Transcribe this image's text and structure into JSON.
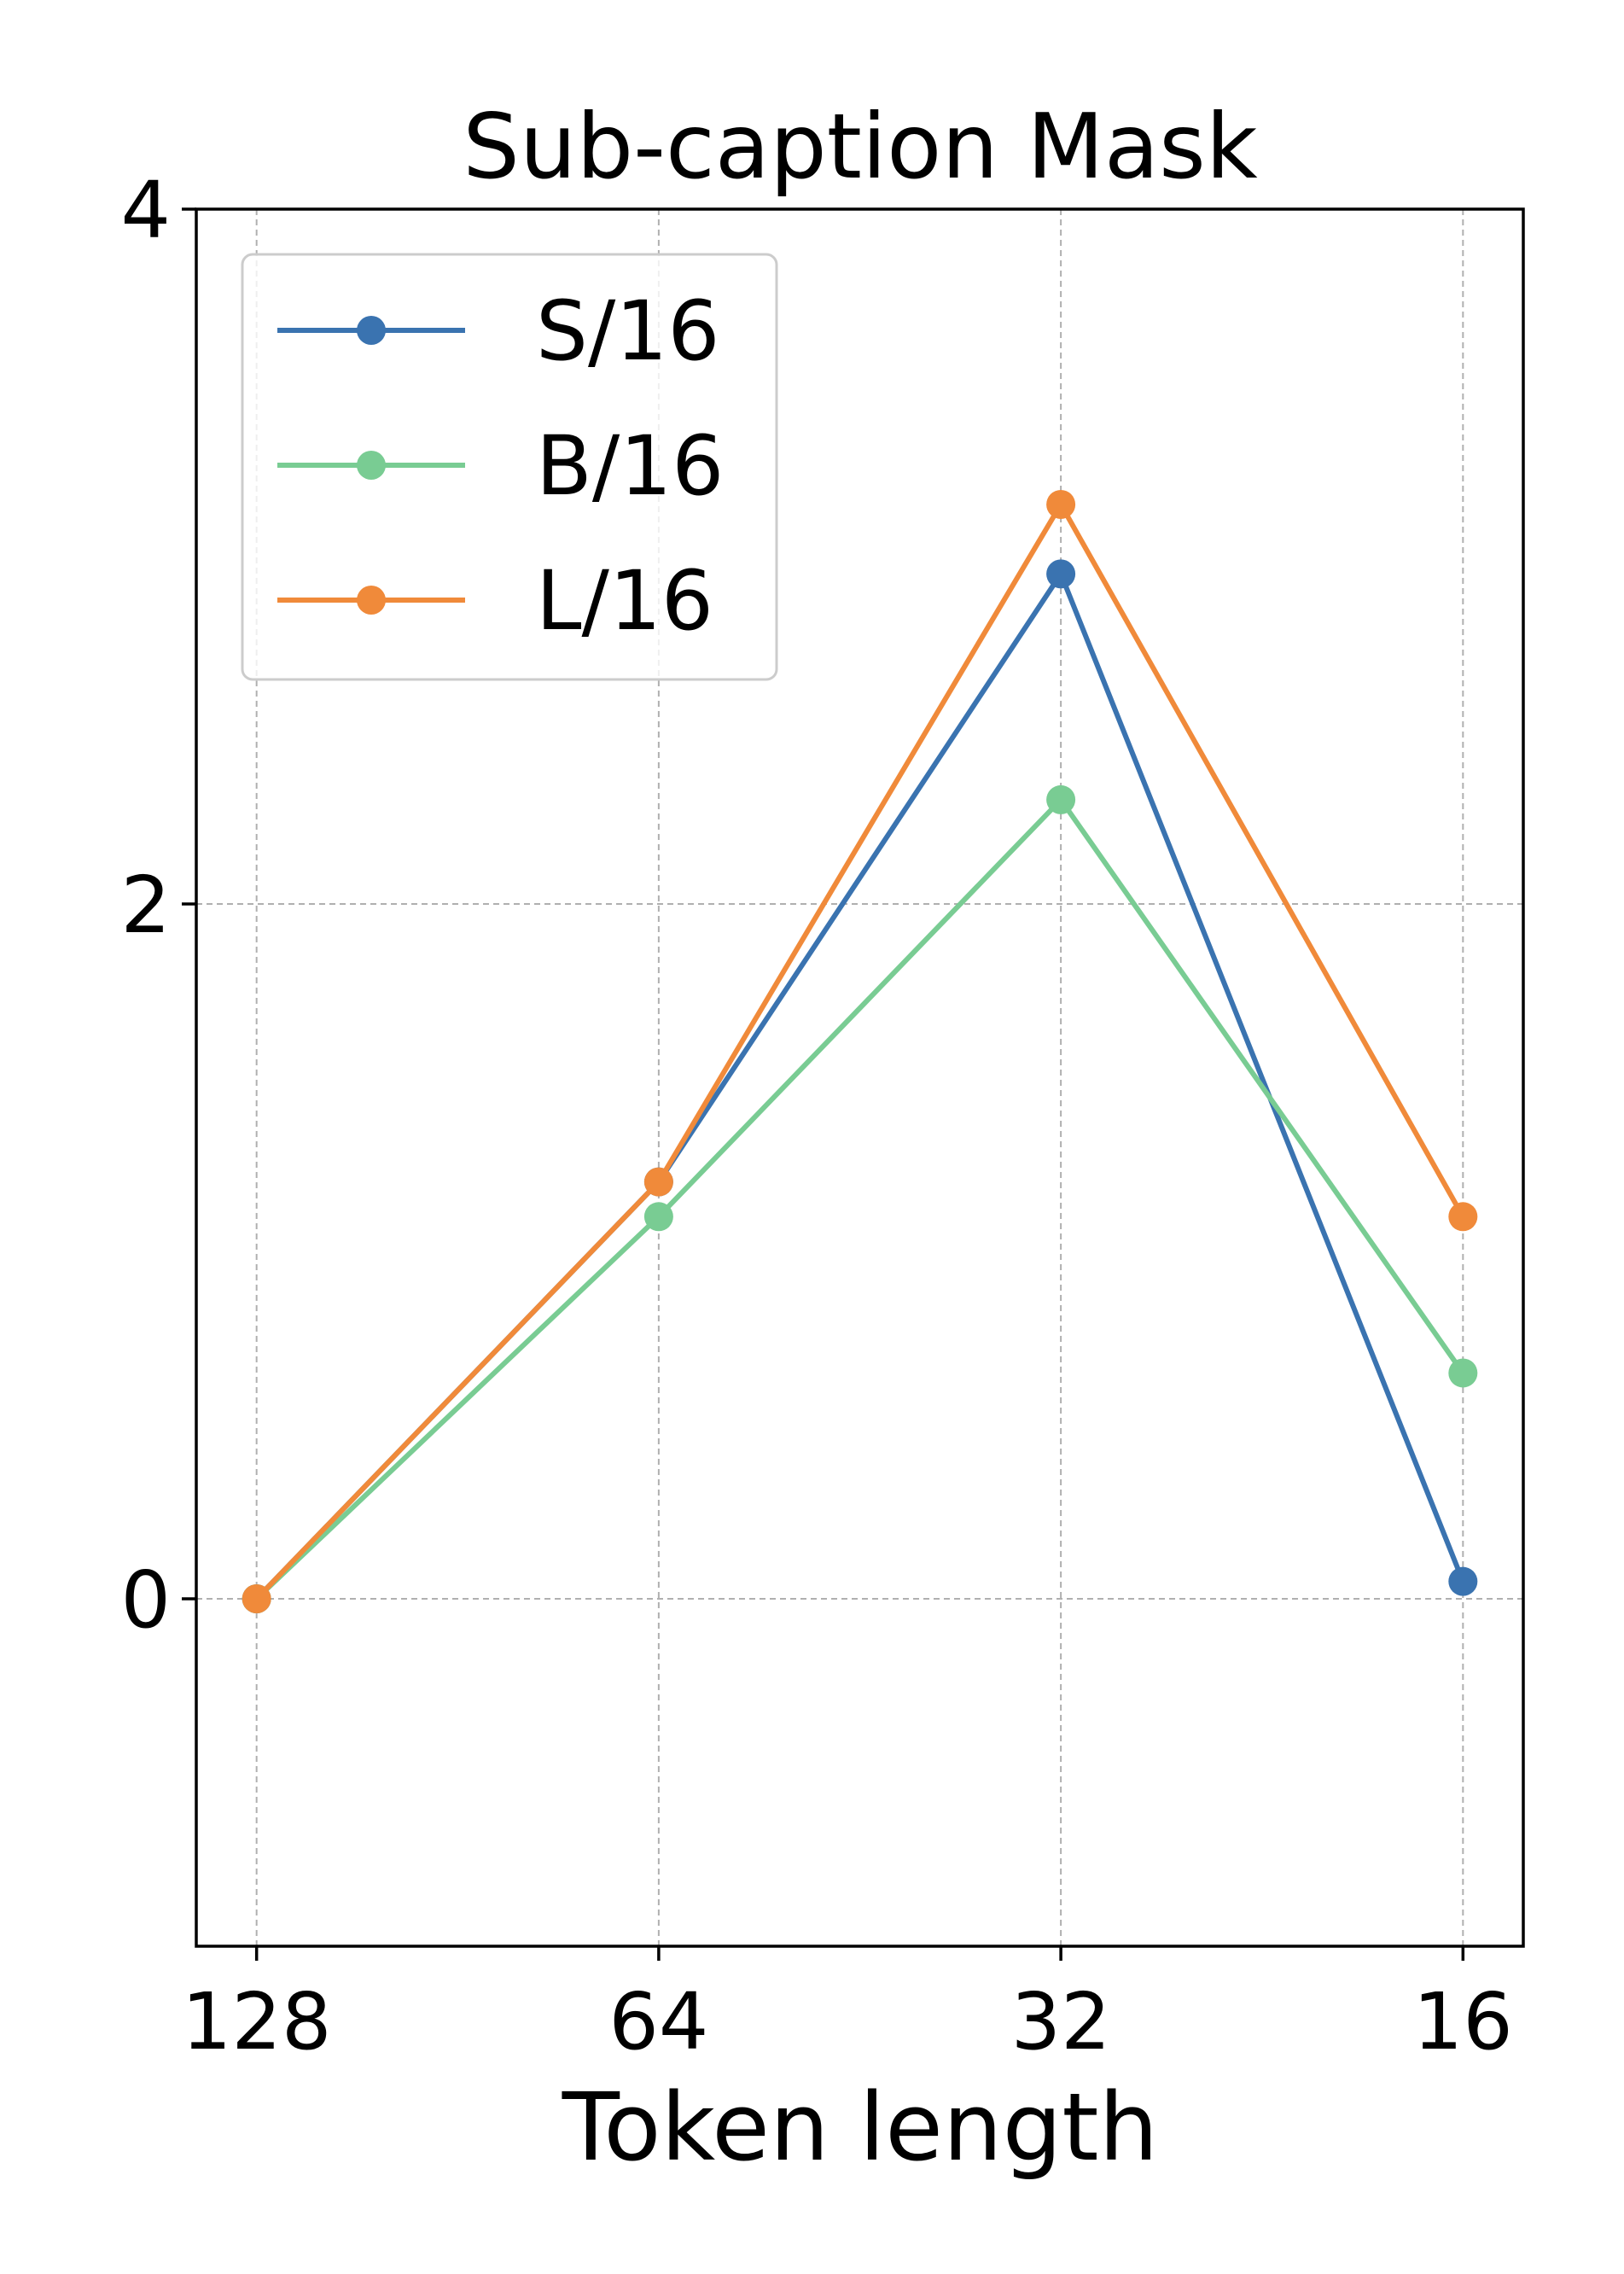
{
  "chart_data": {
    "type": "line",
    "title": "Sub-caption Mask",
    "xlabel": "Token length",
    "ylabel": "",
    "x_scale": "log2-reversed",
    "x": [
      128,
      64,
      32,
      16
    ],
    "x_tick_labels": [
      "128",
      "64",
      "32",
      "16"
    ],
    "ylim": [
      -1,
      4
    ],
    "y_ticks": [
      0,
      2,
      4
    ],
    "y_tick_labels": [
      "0",
      "2",
      "4"
    ],
    "grid": true,
    "legend_position": "top-left",
    "series": [
      {
        "name": "S/16",
        "color": "#3a73b0",
        "values": [
          0.0,
          1.2,
          2.95,
          0.05
        ]
      },
      {
        "name": "B/16",
        "color": "#79cc93",
        "values": [
          0.0,
          1.1,
          2.3,
          0.65
        ]
      },
      {
        "name": "L/16",
        "color": "#f08a3a",
        "values": [
          0.0,
          1.2,
          3.15,
          1.1
        ]
      }
    ]
  }
}
